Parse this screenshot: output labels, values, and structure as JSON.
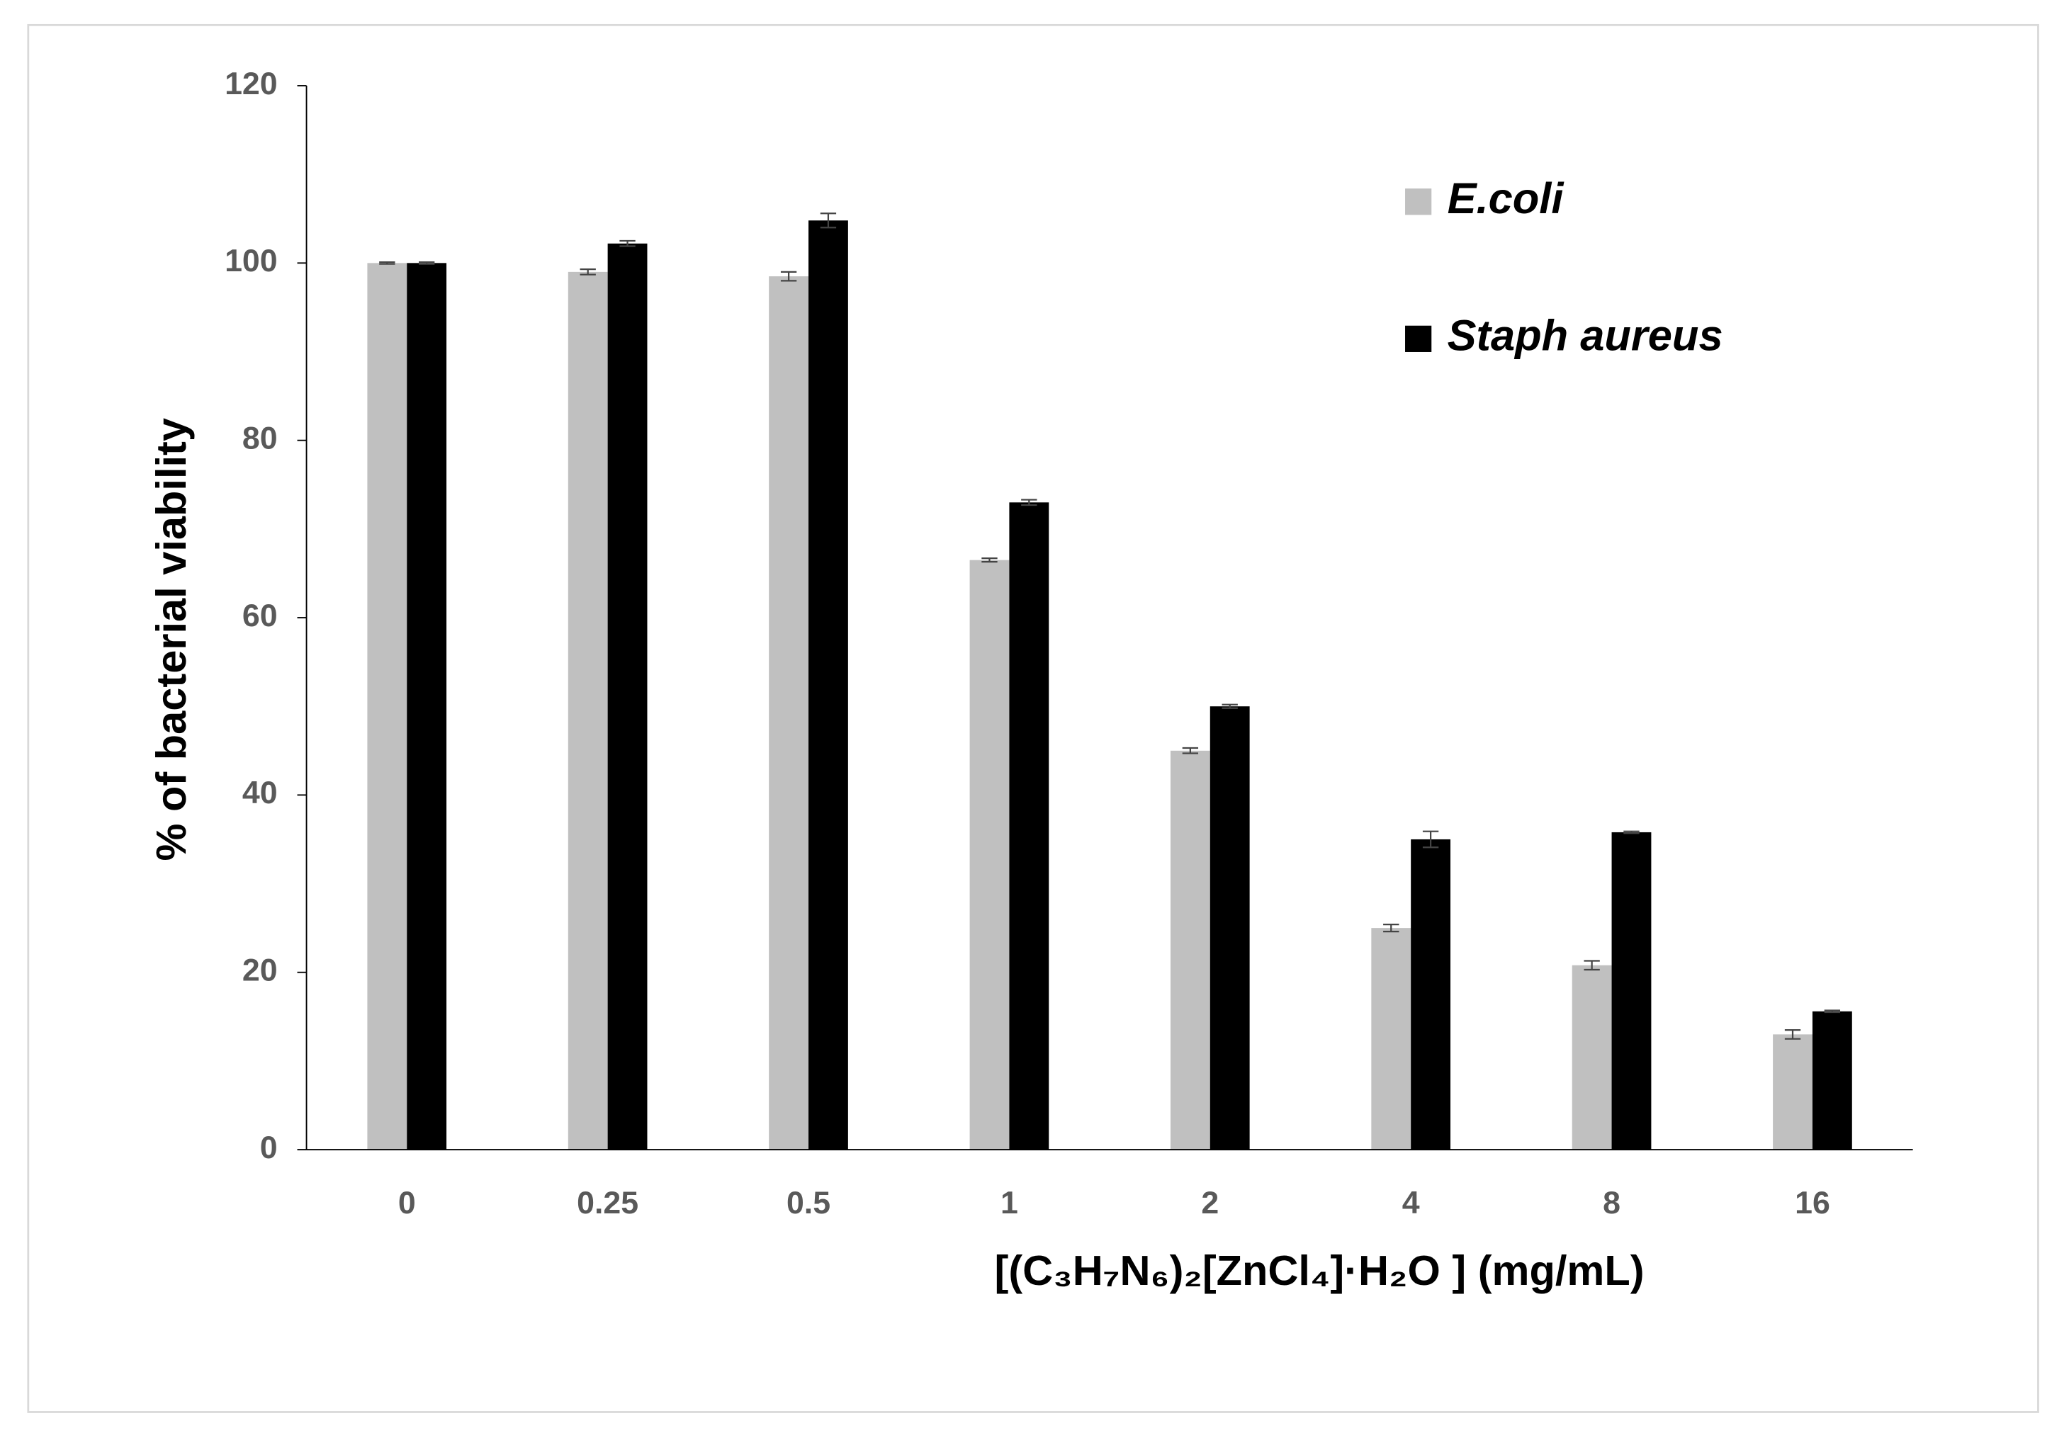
{
  "chart_data": {
    "type": "bar",
    "x_label": "[(C₃H₇N₆)₂[ZnCl₄]·H₂O ] (mg/mL)",
    "y_label": "% of  bacterial viability",
    "categories": [
      "0",
      "0.25",
      "0.5",
      "1",
      "2",
      "4",
      "8",
      "16"
    ],
    "series": [
      {
        "name": "E.coli",
        "color": "#c0c0c0",
        "values": [
          100,
          99,
          98.5,
          66.5,
          45,
          25,
          20.8,
          13
        ],
        "errors": [
          0.1,
          0.3,
          0.5,
          0.2,
          0.3,
          0.4,
          0.5,
          0.5
        ]
      },
      {
        "name": "Staph aureus",
        "color": "#000000",
        "values": [
          100,
          102.2,
          104.8,
          73,
          50,
          35,
          35.8,
          15.6
        ],
        "errors": [
          0.1,
          0.3,
          0.8,
          0.3,
          0.2,
          0.9,
          0.1,
          0.1
        ]
      }
    ],
    "ylim": [
      0,
      120
    ],
    "yticks": [
      0,
      20,
      40,
      60,
      80,
      100,
      120
    ],
    "grid": false,
    "legend": "top-right"
  }
}
